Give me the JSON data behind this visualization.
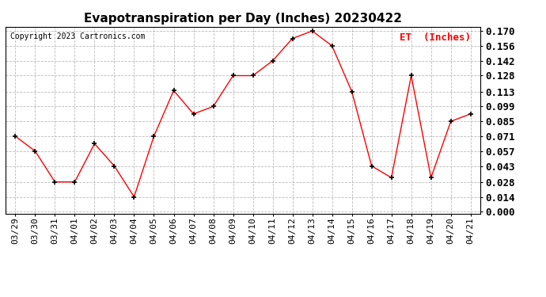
{
  "title": "Evapotranspiration per Day (Inches) 20230422",
  "copyright": "Copyright 2023 Cartronics.com",
  "legend_label": "ET  (Inches)",
  "x_labels": [
    "03/29",
    "03/30",
    "03/31",
    "04/01",
    "04/02",
    "04/03",
    "04/04",
    "04/05",
    "04/06",
    "04/07",
    "04/08",
    "04/09",
    "04/10",
    "04/11",
    "04/12",
    "04/13",
    "04/14",
    "04/15",
    "04/16",
    "04/17",
    "04/18",
    "04/19",
    "04/20",
    "04/21"
  ],
  "y_values": [
    0.071,
    0.057,
    0.028,
    0.028,
    0.064,
    0.043,
    0.014,
    0.071,
    0.114,
    0.092,
    0.099,
    0.128,
    0.128,
    0.142,
    0.163,
    0.17,
    0.156,
    0.113,
    0.043,
    0.032,
    0.128,
    0.032,
    0.085,
    0.092
  ],
  "y_ticks": [
    0.0,
    0.014,
    0.028,
    0.043,
    0.057,
    0.071,
    0.085,
    0.099,
    0.113,
    0.128,
    0.142,
    0.156,
    0.17
  ],
  "y_min": -0.002,
  "y_max": 0.174,
  "line_color": "#ff0000",
  "marker_color": "#000000",
  "grid_color": "#aaaaaa",
  "background_color": "#ffffff",
  "title_fontsize": 11,
  "copyright_fontsize": 7,
  "legend_fontsize": 9,
  "tick_fontsize": 8,
  "ytick_fontsize": 9
}
